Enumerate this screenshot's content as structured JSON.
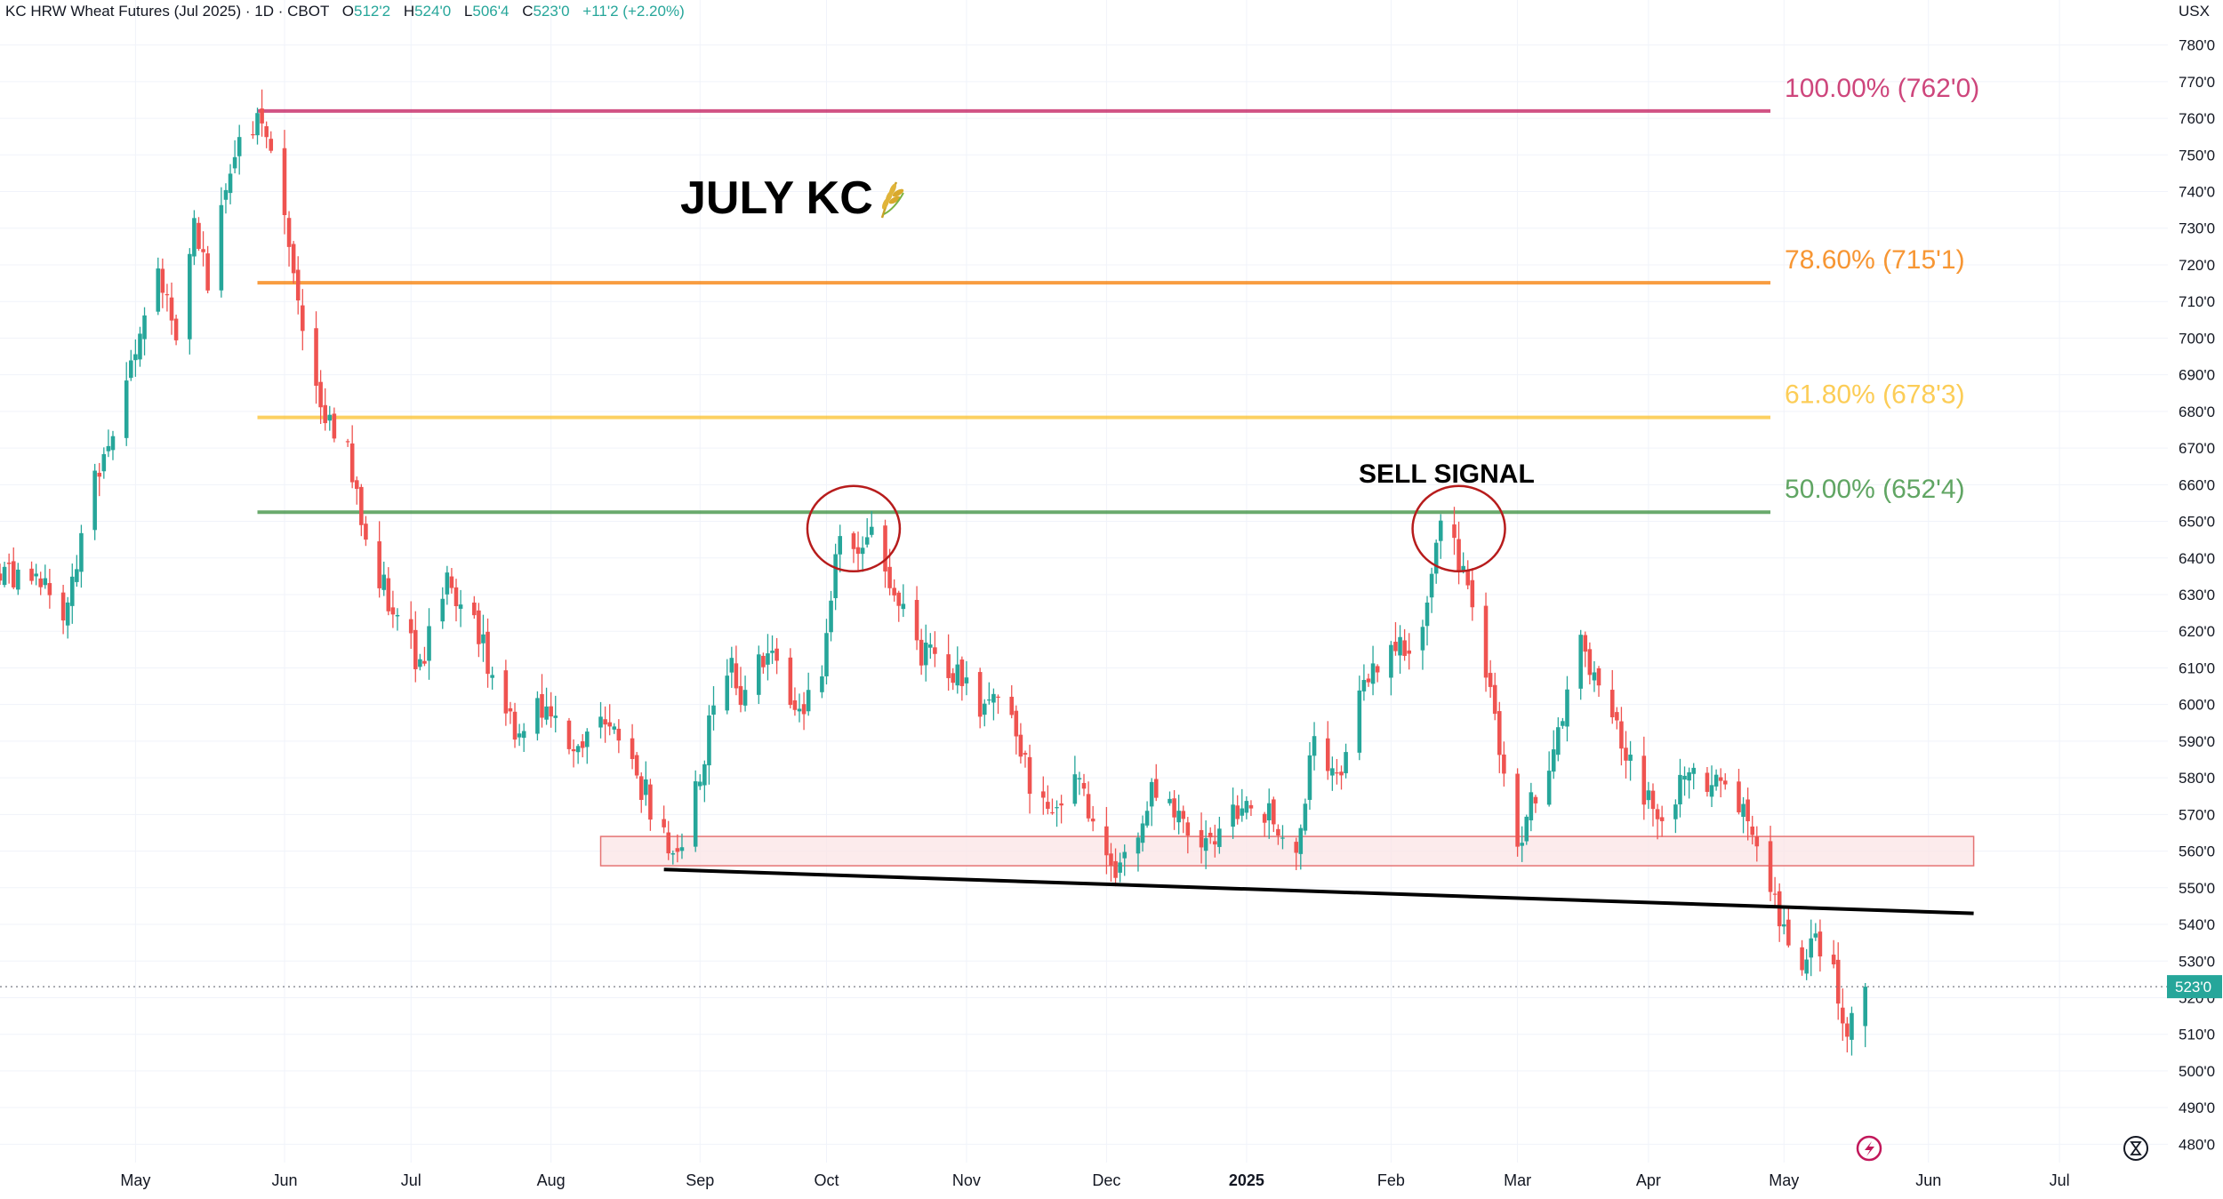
{
  "header": {
    "symbol": "KC HRW Wheat Futures (Jul 2025) · 1D · CBOT",
    "open_label": "O",
    "open": "512'2",
    "high_label": "H",
    "high": "524'0",
    "low_label": "L",
    "low": "506'4",
    "close_label": "C",
    "close": "523'0",
    "change": "+11'2 (+2.20%)"
  },
  "currency": "USX",
  "title_annotation": "JULY KC",
  "title_icon": "wheat-icon",
  "sell_signal": "SELL SIGNAL",
  "last_price_label": "523'0",
  "colors": {
    "up": "#26a69a",
    "down": "#ef5350",
    "axis_text": "#131722",
    "grid": "#f0f3fa",
    "fib_100": "#c2185b",
    "fib_786": "#f57c00",
    "fib_618": "#fbc02d",
    "fib_50": "#388e3c",
    "zone_fill": "#fbe4e6",
    "zone_stroke": "#e57373",
    "trendline": "#000000",
    "price_tag": "#26a69a"
  },
  "chart_data": {
    "type": "candlestick",
    "title": "JULY KC",
    "xlabel": "",
    "ylabel": "",
    "ylim": [
      475,
      785
    ],
    "y_ticks": [
      "480'0",
      "490'0",
      "500'0",
      "510'0",
      "520'0",
      "530'0",
      "540'0",
      "550'0",
      "560'0",
      "570'0",
      "580'0",
      "590'0",
      "600'0",
      "610'0",
      "620'0",
      "630'0",
      "640'0",
      "650'0",
      "660'0",
      "670'0",
      "680'0",
      "690'0",
      "700'0",
      "710'0",
      "720'0",
      "730'0",
      "740'0",
      "750'0",
      "760'0",
      "770'0",
      "780'0"
    ],
    "y_tick_values": [
      480,
      490,
      500,
      510,
      520,
      530,
      540,
      550,
      560,
      570,
      580,
      590,
      600,
      610,
      620,
      630,
      640,
      650,
      660,
      670,
      680,
      690,
      700,
      710,
      720,
      730,
      740,
      750,
      760,
      770,
      780
    ],
    "x_range": [
      "2024-04-01",
      "2025-07-25"
    ],
    "x_ticks": [
      {
        "label": "May",
        "date": "2024-05-01",
        "bold": false
      },
      {
        "label": "Jun",
        "date": "2024-06-03",
        "bold": false
      },
      {
        "label": "Jul",
        "date": "2024-07-01",
        "bold": false
      },
      {
        "label": "Aug",
        "date": "2024-08-01",
        "bold": false
      },
      {
        "label": "Sep",
        "date": "2024-09-03",
        "bold": false
      },
      {
        "label": "Oct",
        "date": "2024-10-01",
        "bold": false
      },
      {
        "label": "Nov",
        "date": "2024-11-01",
        "bold": false
      },
      {
        "label": "Dec",
        "date": "2024-12-02",
        "bold": false
      },
      {
        "label": "2025",
        "date": "2025-01-02",
        "bold": true
      },
      {
        "label": "Feb",
        "date": "2025-02-03",
        "bold": false
      },
      {
        "label": "Mar",
        "date": "2025-03-03",
        "bold": false
      },
      {
        "label": "Apr",
        "date": "2025-04-01",
        "bold": false
      },
      {
        "label": "May",
        "date": "2025-05-01",
        "bold": false
      },
      {
        "label": "Jun",
        "date": "2025-06-02",
        "bold": false
      },
      {
        "label": "Jul",
        "date": "2025-07-01",
        "bold": false
      }
    ],
    "anchors": [
      {
        "date": "2024-04-01",
        "close": 635
      },
      {
        "date": "2024-04-10",
        "close": 632
      },
      {
        "date": "2024-04-15",
        "close": 625
      },
      {
        "date": "2024-04-22",
        "close": 662
      },
      {
        "date": "2024-04-29",
        "close": 688
      },
      {
        "date": "2024-05-06",
        "close": 715
      },
      {
        "date": "2024-05-10",
        "close": 702
      },
      {
        "date": "2024-05-14",
        "close": 735
      },
      {
        "date": "2024-05-17",
        "close": 715
      },
      {
        "date": "2024-05-22",
        "close": 748
      },
      {
        "date": "2024-05-28",
        "close": 758
      },
      {
        "date": "2024-05-31",
        "close": 748
      },
      {
        "date": "2024-06-04",
        "close": 728
      },
      {
        "date": "2024-06-07",
        "close": 705
      },
      {
        "date": "2024-06-12",
        "close": 680
      },
      {
        "date": "2024-06-17",
        "close": 668
      },
      {
        "date": "2024-06-21",
        "close": 648
      },
      {
        "date": "2024-06-28",
        "close": 620
      },
      {
        "date": "2024-07-03",
        "close": 612
      },
      {
        "date": "2024-07-09",
        "close": 632
      },
      {
        "date": "2024-07-15",
        "close": 625
      },
      {
        "date": "2024-07-18",
        "close": 612
      },
      {
        "date": "2024-07-24",
        "close": 592
      },
      {
        "date": "2024-07-30",
        "close": 600
      },
      {
        "date": "2024-08-06",
        "close": 585
      },
      {
        "date": "2024-08-12",
        "close": 598
      },
      {
        "date": "2024-08-16",
        "close": 590
      },
      {
        "date": "2024-08-21",
        "close": 578
      },
      {
        "date": "2024-08-27",
        "close": 562
      },
      {
        "date": "2024-08-29",
        "close": 558
      },
      {
        "date": "2024-09-04",
        "close": 588
      },
      {
        "date": "2024-09-09",
        "close": 612
      },
      {
        "date": "2024-09-13",
        "close": 600
      },
      {
        "date": "2024-09-18",
        "close": 618
      },
      {
        "date": "2024-09-24",
        "close": 595
      },
      {
        "date": "2024-09-30",
        "close": 612
      },
      {
        "date": "2024-10-04",
        "close": 648
      },
      {
        "date": "2024-10-08",
        "close": 638
      },
      {
        "date": "2024-10-11",
        "close": 645
      },
      {
        "date": "2024-10-16",
        "close": 628
      },
      {
        "date": "2024-10-22",
        "close": 615
      },
      {
        "date": "2024-10-28",
        "close": 610
      },
      {
        "date": "2024-11-04",
        "close": 600
      },
      {
        "date": "2024-11-08",
        "close": 605
      },
      {
        "date": "2024-11-14",
        "close": 582
      },
      {
        "date": "2024-11-20",
        "close": 568
      },
      {
        "date": "2024-11-25",
        "close": 585
      },
      {
        "date": "2024-12-02",
        "close": 555
      },
      {
        "date": "2024-12-06",
        "close": 558
      },
      {
        "date": "2024-12-12",
        "close": 575
      },
      {
        "date": "2024-12-18",
        "close": 570
      },
      {
        "date": "2024-12-24",
        "close": 562
      },
      {
        "date": "2025-01-02",
        "close": 575
      },
      {
        "date": "2025-01-08",
        "close": 568
      },
      {
        "date": "2025-01-14",
        "close": 562
      },
      {
        "date": "2025-01-17",
        "close": 592
      },
      {
        "date": "2025-01-22",
        "close": 578
      },
      {
        "date": "2025-01-28",
        "close": 605
      },
      {
        "date": "2025-02-03",
        "close": 612
      },
      {
        "date": "2025-02-10",
        "close": 620
      },
      {
        "date": "2025-02-14",
        "close": 650
      },
      {
        "date": "2025-02-19",
        "close": 635
      },
      {
        "date": "2025-02-24",
        "close": 610
      },
      {
        "date": "2025-03-03",
        "close": 562
      },
      {
        "date": "2025-03-07",
        "close": 575
      },
      {
        "date": "2025-03-12",
        "close": 590
      },
      {
        "date": "2025-03-17",
        "close": 620
      },
      {
        "date": "2025-03-20",
        "close": 608
      },
      {
        "date": "2025-03-25",
        "close": 595
      },
      {
        "date": "2025-03-31",
        "close": 575
      },
      {
        "date": "2025-04-04",
        "close": 568
      },
      {
        "date": "2025-04-09",
        "close": 582
      },
      {
        "date": "2025-04-14",
        "close": 576
      },
      {
        "date": "2025-04-18",
        "close": 578
      },
      {
        "date": "2025-04-23",
        "close": 568
      },
      {
        "date": "2025-04-28",
        "close": 548
      },
      {
        "date": "2025-05-02",
        "close": 532
      },
      {
        "date": "2025-05-05",
        "close": 528
      },
      {
        "date": "2025-05-07",
        "close": 538
      },
      {
        "date": "2025-05-12",
        "close": 530
      },
      {
        "date": "2025-05-15",
        "close": 508
      },
      {
        "date": "2025-05-16",
        "close": 512
      },
      {
        "date": "2025-05-19",
        "close": 523
      }
    ],
    "fib_levels": [
      {
        "label": "100.00% (762'0)",
        "value": 762.0,
        "color_key": "fib_100"
      },
      {
        "label": "78.60% (715'1)",
        "value": 715.125,
        "color_key": "fib_786"
      },
      {
        "label": "61.80% (678'3)",
        "value": 678.375,
        "color_key": "fib_618"
      },
      {
        "label": "50.00% (652'4)",
        "value": 652.5,
        "color_key": "fib_50"
      }
    ],
    "fib_start_date": "2024-05-28",
    "fib_end_date": "2025-04-28",
    "support_zone": {
      "start": "2024-08-12",
      "end": "2025-06-12",
      "low": 556,
      "high": 564
    },
    "trendline": {
      "x1": "2024-08-26",
      "y1": 555,
      "x2": "2025-06-12",
      "y2": 543
    },
    "circles": [
      {
        "date": "2024-10-07",
        "price": 648
      },
      {
        "date": "2025-02-18",
        "price": 648
      }
    ],
    "last_price": 523.0
  }
}
